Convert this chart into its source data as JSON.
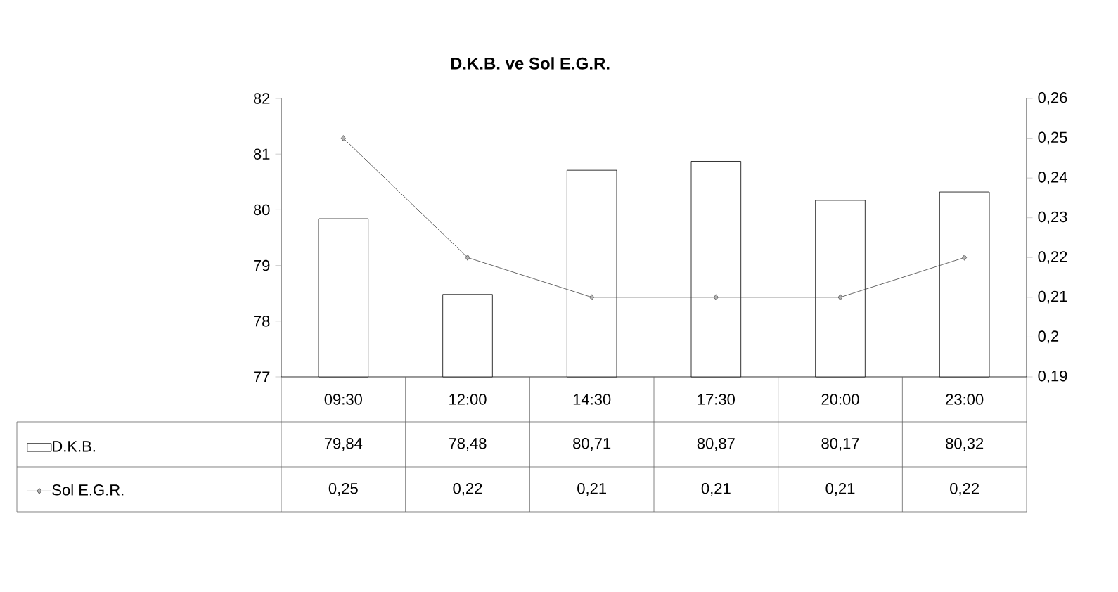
{
  "chart_data": {
    "type": "bar",
    "title": "D.K.B. ve Sol E.G.R.",
    "categories": [
      "09:30",
      "12:00",
      "14:30",
      "17:30",
      "20:00",
      "23:00"
    ],
    "series": [
      {
        "name": "D.K.B.",
        "color": "#ffffff",
        "values": [
          79.84,
          78.48,
          80.71,
          80.87,
          80.17,
          80.32
        ],
        "value_labels": [
          "79,84",
          "78,48",
          "80,71",
          "80,87",
          "80,17",
          "80,32"
        ]
      },
      {
        "name": "Sol E.G.R.",
        "type": "line",
        "axis": "y2",
        "color": "#404040",
        "marker": "diamond",
        "values": [
          0.25,
          0.22,
          0.21,
          0.21,
          0.21,
          0.22
        ],
        "value_labels": [
          "0,25",
          "0,22",
          "0,21",
          "0,21",
          "0,21",
          "0,22"
        ]
      }
    ],
    "ylim": [
      77,
      82
    ],
    "yticks": [
      77,
      78,
      79,
      80,
      81,
      82
    ],
    "y2lim": [
      0.19,
      0.26
    ],
    "y2ticks": [
      {
        "value": 0.19,
        "label": "0,19"
      },
      {
        "value": 0.2,
        "label": "0,2"
      },
      {
        "value": 0.21,
        "label": "0,21"
      },
      {
        "value": 0.22,
        "label": "0,22"
      },
      {
        "value": 0.23,
        "label": "0,23"
      },
      {
        "value": 0.24,
        "label": "0,24"
      },
      {
        "value": 0.25,
        "label": "0,25"
      },
      {
        "value": 0.26,
        "label": "0,26"
      }
    ],
    "legend": "bottom"
  }
}
